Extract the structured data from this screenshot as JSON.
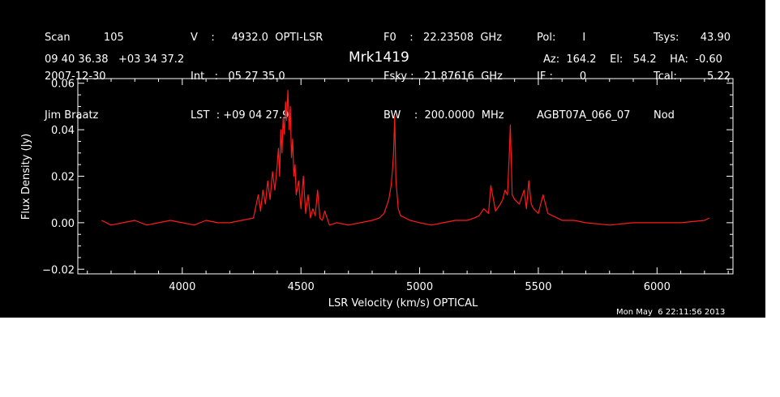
{
  "header": {
    "col1": [
      "Scan          105",
      "2007-12-30",
      "Jim Braatz"
    ],
    "col2": [
      "V    :     4932.0  OPTI-LSR",
      "Int   :   05 27 35.0",
      "LST  : +09 04 27.9"
    ],
    "col3": [
      "F0    :   22.23508  GHz",
      "Fsky :   21.87616  GHz",
      "BW    :  200.0000  MHz"
    ],
    "col4": [
      "Pol:        I",
      "IF :        0",
      "AGBT07A_066_07"
    ],
    "col5": [
      "Tsys:",
      "Tcal:",
      "Nod"
    ],
    "col5_values": [
      "43.90",
      "5.22",
      ""
    ],
    "coords": "09 40 36.38   +03 34 37.2",
    "source": "Mrk1419",
    "pointing": "Az:  164.2    El:   54.2    HA:  -0.60",
    "timestamp": "Mon May  6 22:11:56 2013"
  },
  "colors": {
    "background": "#000000",
    "axes": "#ffffff",
    "trace": "#ff1a1a"
  },
  "chart_data": {
    "type": "line",
    "title": "Mrk1419",
    "xlabel": "LSR Velocity (km/s) OPTICAL",
    "ylabel": "Flux Density (Jy)",
    "xlim": [
      3560,
      6320
    ],
    "ylim": [
      -0.022,
      0.062
    ],
    "xticks": [
      4000,
      4500,
      5000,
      5500,
      6000
    ],
    "xtick_labels": [
      "4000",
      "4500",
      "5000",
      "5500",
      "6000"
    ],
    "yticks": [
      -0.02,
      0.0,
      0.02,
      0.04,
      0.06
    ],
    "ytick_labels": [
      "−0.02",
      "0.00",
      "0.02",
      "0.04",
      "0.06"
    ],
    "grid": false,
    "series": [
      {
        "x": [
          3660,
          3700,
          3750,
          3800,
          3850,
          3900,
          3950,
          4000,
          4050,
          4100,
          4150,
          4200,
          4250,
          4300,
          4320,
          4330,
          4340,
          4350,
          4360,
          4370,
          4380,
          4390,
          4400,
          4405,
          4410,
          4415,
          4420,
          4425,
          4430,
          4435,
          4440,
          4445,
          4450,
          4455,
          4460,
          4465,
          4470,
          4475,
          4480,
          4490,
          4500,
          4510,
          4520,
          4530,
          4540,
          4550,
          4560,
          4570,
          4580,
          4590,
          4600,
          4620,
          4650,
          4700,
          4750,
          4800,
          4830,
          4850,
          4870,
          4880,
          4885,
          4890,
          4895,
          4900,
          4905,
          4910,
          4920,
          4940,
          4960,
          5000,
          5050,
          5100,
          5150,
          5200,
          5230,
          5250,
          5270,
          5290,
          5300,
          5320,
          5340,
          5350,
          5360,
          5370,
          5378,
          5382,
          5390,
          5400,
          5420,
          5440,
          5450,
          5460,
          5470,
          5480,
          5500,
          5520,
          5540,
          5560,
          5580,
          5600,
          5650,
          5700,
          5800,
          5900,
          6000,
          6100,
          6200,
          6220
        ],
        "y": [
          0.001,
          -0.001,
          0.0,
          0.001,
          -0.001,
          0.0,
          0.001,
          0.0,
          -0.001,
          0.001,
          0.0,
          0.0,
          0.001,
          0.002,
          0.012,
          0.005,
          0.014,
          0.008,
          0.018,
          0.01,
          0.022,
          0.014,
          0.025,
          0.032,
          0.02,
          0.04,
          0.03,
          0.045,
          0.038,
          0.052,
          0.044,
          0.057,
          0.04,
          0.05,
          0.028,
          0.036,
          0.02,
          0.025,
          0.012,
          0.018,
          0.006,
          0.02,
          0.004,
          0.012,
          0.002,
          0.006,
          0.003,
          0.014,
          0.002,
          0.001,
          0.005,
          -0.001,
          0.0,
          -0.001,
          0.0,
          0.001,
          0.002,
          0.004,
          0.01,
          0.016,
          0.022,
          0.03,
          0.046,
          0.018,
          0.012,
          0.006,
          0.003,
          0.002,
          0.001,
          0.0,
          -0.001,
          0.0,
          0.001,
          0.001,
          0.002,
          0.003,
          0.006,
          0.004,
          0.016,
          0.005,
          0.008,
          0.01,
          0.014,
          0.012,
          0.03,
          0.042,
          0.012,
          0.01,
          0.008,
          0.014,
          0.006,
          0.018,
          0.008,
          0.006,
          0.004,
          0.012,
          0.004,
          0.003,
          0.002,
          0.001,
          0.001,
          0.0,
          -0.001,
          0.0,
          0.0,
          0.0,
          0.001,
          0.002
        ]
      }
    ]
  }
}
